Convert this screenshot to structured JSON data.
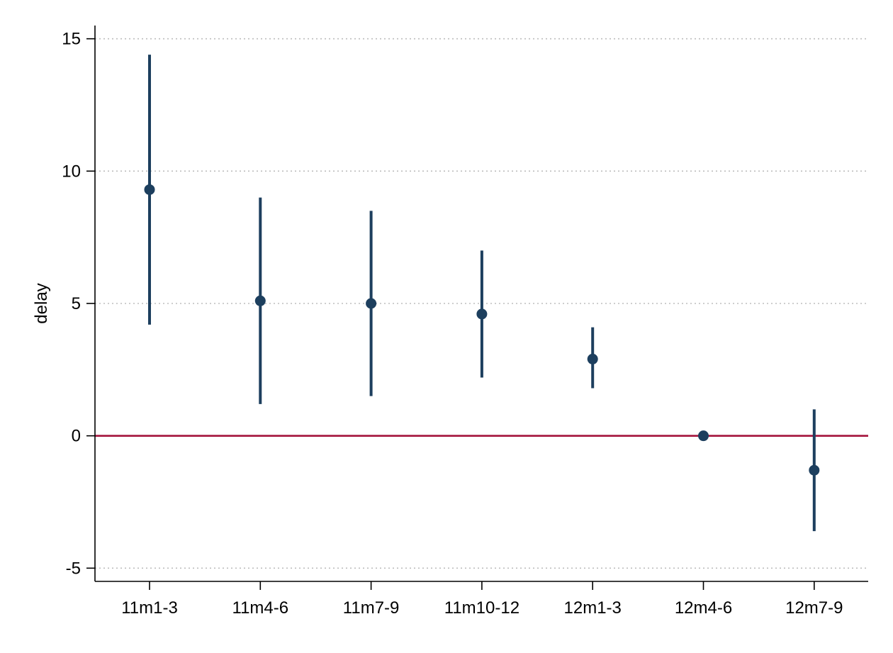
{
  "chart_data": {
    "type": "scatter",
    "subtype": "coefficient plot with confidence intervals",
    "title": "",
    "xlabel": "",
    "ylabel": "delay",
    "ylim": [
      -5.5,
      15.5
    ],
    "yticks": [
      15,
      10,
      5,
      0,
      -5
    ],
    "ytick_labels": [
      "15",
      "10",
      "5",
      "0",
      "-5"
    ],
    "categories": [
      "11m1-3",
      "11m4-6",
      "11m7-9",
      "11m10-12",
      "12m1-3",
      "12m4-6",
      "12m7-9"
    ],
    "series": [
      {
        "estimates": [
          9.3,
          5.1,
          5.0,
          4.6,
          2.9,
          0.0,
          -1.3
        ],
        "ci_lower": [
          4.2,
          1.2,
          1.5,
          2.2,
          1.8,
          0.0,
          -3.6
        ],
        "ci_upper": [
          14.4,
          9.0,
          8.5,
          7.0,
          4.1,
          0.0,
          1.0
        ],
        "color": "#1d3f5e"
      }
    ],
    "reference_line": {
      "y": 0,
      "color": "#a3123a"
    },
    "grid": {
      "horizontal": true,
      "style": "dotted",
      "color": "#bdbdbd"
    },
    "legend": "none"
  }
}
